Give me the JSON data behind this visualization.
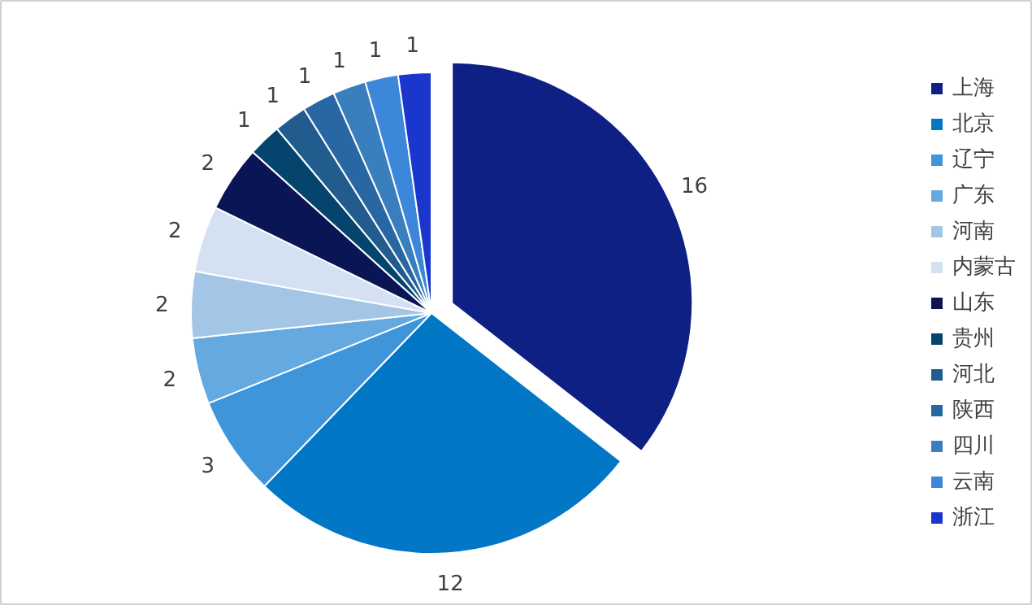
{
  "chart_data": {
    "type": "pie",
    "categories": [
      "上海",
      "北京",
      "辽宁",
      "广东",
      "河南",
      "内蒙古",
      "山东",
      "贵州",
      "河北",
      "陕西",
      "四川",
      "云南",
      "浙江"
    ],
    "values": [
      16,
      12,
      3,
      2,
      2,
      2,
      2,
      1,
      1,
      1,
      1,
      1,
      1
    ],
    "colors": [
      "#0e2084",
      "#0277c6",
      "#3f95d9",
      "#64a9df",
      "#a4c6e6",
      "#d3e1f3",
      "#0a1555",
      "#05446d",
      "#225c8f",
      "#2867a3",
      "#3a7fbd",
      "#3c87d9",
      "#1a36cc"
    ],
    "data_labels": true,
    "legend": "right"
  }
}
